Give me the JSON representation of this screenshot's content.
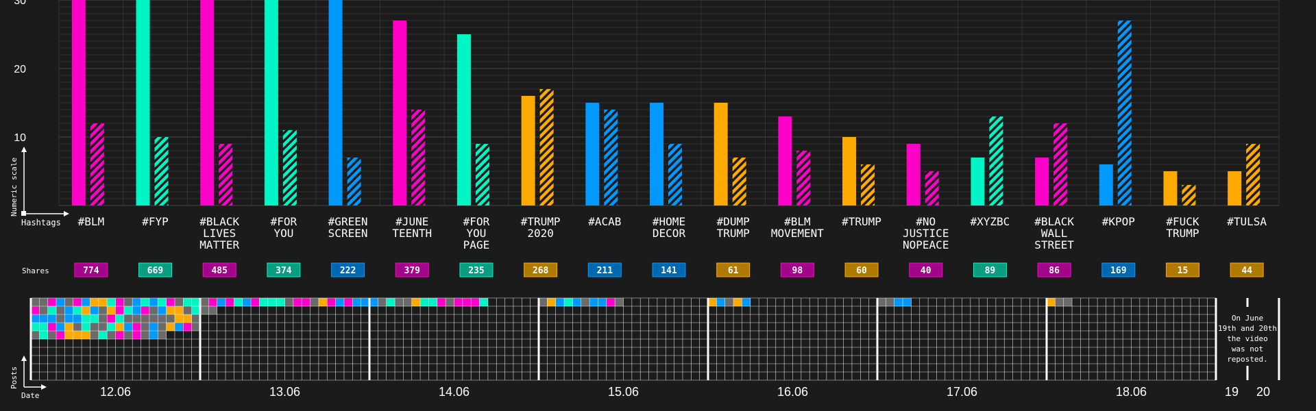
{
  "colors": {
    "background": "#1b1b1b",
    "magenta": "#ff00c8",
    "teal": "#00f5c4",
    "blue": "#0099ff",
    "orange": "#ffaa00",
    "grey": "#6b6b6b",
    "magenta_badge": "#a3058a",
    "teal_badge": "#0a9e80",
    "blue_badge": "#0068b0",
    "orange_badge": "#b07a00"
  },
  "labels": {
    "y_axis": "Numeric scale",
    "x_axis": "Hashtags",
    "shares": "Shares",
    "posts": "Posts",
    "date": "Date",
    "note": [
      "On June",
      "19th and 20th",
      "the video",
      "was not",
      "reposted."
    ]
  },
  "chart_data": [
    {
      "type": "bar",
      "ylabel": "Numeric scale",
      "xlabel": "Hashtags",
      "ylim": [
        0,
        30
      ],
      "yticks": [
        10,
        20,
        30
      ],
      "grid": true,
      "categories": [
        {
          "tag": [
            "#BLM"
          ],
          "color": "magenta",
          "solid": 33,
          "hatched": 12,
          "shares": "774"
        },
        {
          "tag": [
            "#FYP"
          ],
          "color": "teal",
          "solid": 33,
          "hatched": 10,
          "shares": "669"
        },
        {
          "tag": [
            "#BLACK",
            "LIVES",
            "MATTER"
          ],
          "color": "magenta",
          "solid": 33,
          "hatched": 9,
          "shares": "485"
        },
        {
          "tag": [
            "#FOR",
            "YOU"
          ],
          "color": "teal",
          "solid": 33,
          "hatched": 11,
          "shares": "374"
        },
        {
          "tag": [
            "#GREEN",
            "SCREEN"
          ],
          "color": "blue",
          "solid": 33,
          "hatched": 7,
          "shares": "222"
        },
        {
          "tag": [
            "#JUNE",
            "TEENTH"
          ],
          "color": "magenta",
          "solid": 27,
          "hatched": 14,
          "shares": "379"
        },
        {
          "tag": [
            "#FOR",
            "YOU",
            "PAGE"
          ],
          "color": "teal",
          "solid": 25,
          "hatched": 9,
          "shares": "235"
        },
        {
          "tag": [
            "#TRUMP",
            "2020"
          ],
          "color": "orange",
          "solid": 16,
          "hatched": 17,
          "shares": "268"
        },
        {
          "tag": [
            "#ACAB"
          ],
          "color": "blue",
          "solid": 15,
          "hatched": 14,
          "shares": "211"
        },
        {
          "tag": [
            "#HOME",
            "DECOR"
          ],
          "color": "blue",
          "solid": 15,
          "hatched": 9,
          "shares": "141"
        },
        {
          "tag": [
            "#DUMP",
            "TRUMP"
          ],
          "color": "orange",
          "solid": 15,
          "hatched": 7,
          "shares": "61"
        },
        {
          "tag": [
            "#BLM",
            "MOVEMENT"
          ],
          "color": "magenta",
          "solid": 13,
          "hatched": 8,
          "shares": "98"
        },
        {
          "tag": [
            "#TRUMP"
          ],
          "color": "orange",
          "solid": 10,
          "hatched": 6,
          "shares": "60"
        },
        {
          "tag": [
            "#NO",
            "JUSTICE",
            "NOPEACE"
          ],
          "color": "magenta",
          "solid": 9,
          "hatched": 5,
          "shares": "40"
        },
        {
          "tag": [
            "#XYZBC"
          ],
          "color": "teal",
          "solid": 7,
          "hatched": 13,
          "shares": "89"
        },
        {
          "tag": [
            "#BLACK",
            "WALL",
            "STREET"
          ],
          "color": "magenta",
          "solid": 7,
          "hatched": 12,
          "shares": "86"
        },
        {
          "tag": [
            "#KPOP"
          ],
          "color": "blue",
          "solid": 6,
          "hatched": 27,
          "shares": "169"
        },
        {
          "tag": [
            "#FUCK",
            "TRUMP"
          ],
          "color": "orange",
          "solid": 5,
          "hatched": 3,
          "shares": "15"
        },
        {
          "tag": [
            "#TULSA"
          ],
          "color": "orange",
          "solid": 5,
          "hatched": 9,
          "shares": "44"
        }
      ]
    },
    {
      "type": "heatmap",
      "ylabel": "Posts",
      "xlabel": "Date",
      "days": [
        {
          "label": "12.06",
          "posts": 96
        },
        {
          "label": "13.06",
          "posts": 22
        },
        {
          "label": "14.06",
          "posts": 14
        },
        {
          "label": "15.06",
          "posts": 10
        },
        {
          "label": "16.06",
          "posts": 5
        },
        {
          "label": "17.06",
          "posts": 4
        },
        {
          "label": "18.06",
          "posts": 3
        },
        {
          "label": "19",
          "posts": 0
        },
        {
          "label": "20",
          "posts": 0
        }
      ]
    }
  ]
}
